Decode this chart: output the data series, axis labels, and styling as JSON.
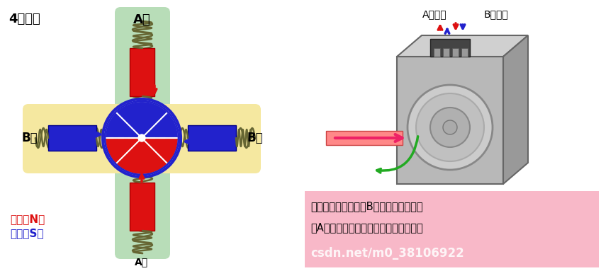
{
  "title": "4极电机",
  "bg_color": "#ffffff",
  "left_label_A_top": "A相",
  "left_label_B_left": "B相",
  "left_label_B_right": "B相",
  "left_label_A_bottom": "A相",
  "legend_red": "红色：N极",
  "legend_blue": "蓝色：S极",
  "right_label_A": "A相输入",
  "right_label_B": "B相输入",
  "pink_text_line1": "另外，电机转子排斥B相磁极的定子，吸",
  "pink_text_line2": "引A相磁极的定子。这就产生了另一个步",
  "watermark": "csdn.net/m0_38106922",
  "green_bg": "#b8ddb8",
  "yellow_bg": "#f5e8a0",
  "pink_bg": "#f8b8c8",
  "red_color": "#dd1111",
  "blue_color": "#2222cc",
  "coil_dark": "#8844aa",
  "coil_light": "#cc88cc"
}
